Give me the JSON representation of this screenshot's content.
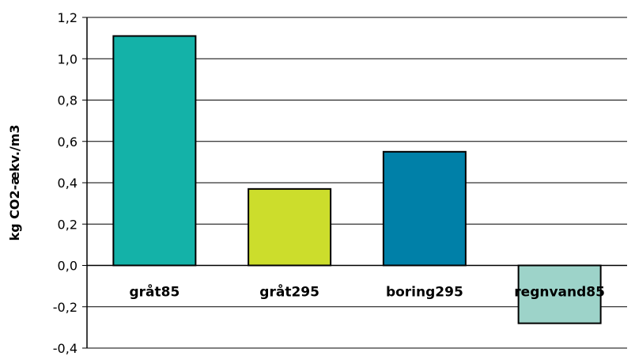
{
  "chart_data": {
    "type": "bar",
    "categories": [
      "gråt85",
      "gråt295",
      "boring295",
      "regnvand85"
    ],
    "values": [
      1.11,
      0.37,
      0.55,
      -0.28
    ],
    "bar_colors": [
      "#14B2A8",
      "#CCDD2C",
      "#0080A8",
      "#9DD3C9"
    ],
    "title": "",
    "xlabel": "",
    "ylabel": "kg CO2-ækv./m3",
    "ylim": [
      -0.4,
      1.2
    ],
    "yticks": [
      -0.4,
      -0.2,
      0.0,
      0.2,
      0.4,
      0.6,
      0.8,
      1.0,
      1.2
    ],
    "ytick_labels": [
      "-0,4",
      "-0,2",
      "0,0",
      "0,2",
      "0,4",
      "0,6",
      "0,8",
      "1,0",
      "1,2"
    ],
    "grid": true,
    "legend": "none"
  }
}
